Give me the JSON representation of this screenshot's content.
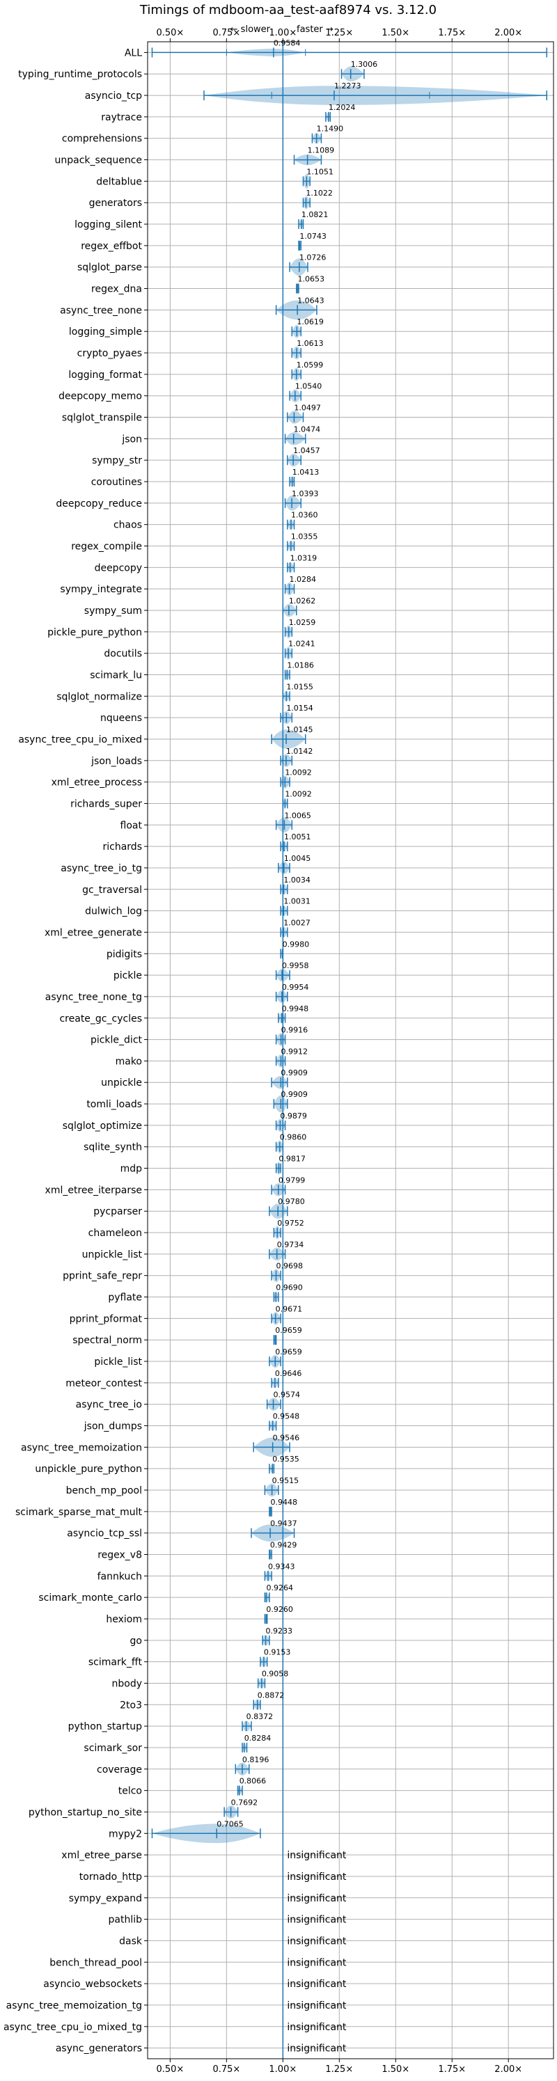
{
  "chart_data": {
    "type": "violin",
    "title": "Timings of mdboom-aa_test-aaf8974 vs. 3.12.0",
    "direction_labels": {
      "slower": "← slower",
      "faster": "faster →"
    },
    "x_ticks": [
      "0.50×",
      "0.75×",
      "1.00×",
      "1.25×",
      "1.50×",
      "1.75×",
      "2.00×"
    ],
    "x_tick_values": [
      0.5,
      0.75,
      1.0,
      1.25,
      1.5,
      1.75,
      2.0
    ],
    "xlim": [
      0.4,
      2.2
    ],
    "reference_line": 1.0,
    "grid": true,
    "insignificant_label": "insignificant",
    "benchmarks": [
      {
        "name": "ALL",
        "value": 0.9584,
        "label": "0.9584",
        "lo": 0.42,
        "hi": 2.17,
        "width": 0.18,
        "inner": [
          0.75,
          1.1
        ],
        "status": "all"
      },
      {
        "name": "typing_runtime_protocols",
        "value": 1.3006,
        "label": "1.3006",
        "lo": 1.26,
        "hi": 1.36,
        "width": 0.35,
        "status": "sig"
      },
      {
        "name": "asyncio_tcp",
        "value": 1.2273,
        "label": "1.2273",
        "lo": 0.65,
        "hi": 2.17,
        "width": 0.45,
        "inner": [
          0.95,
          1.65
        ],
        "status": "sig"
      },
      {
        "name": "raytrace",
        "value": 1.2024,
        "label": "1.2024",
        "lo": 1.19,
        "hi": 1.21,
        "width": 0.2,
        "status": "sig"
      },
      {
        "name": "comprehensions",
        "value": 1.149,
        "label": "1.1490",
        "lo": 1.13,
        "hi": 1.17,
        "width": 0.25,
        "status": "sig"
      },
      {
        "name": "unpack_sequence",
        "value": 1.1089,
        "label": "1.1089",
        "lo": 1.05,
        "hi": 1.17,
        "width": 0.25,
        "status": "sig"
      },
      {
        "name": "deltablue",
        "value": 1.1051,
        "label": "1.1051",
        "lo": 1.09,
        "hi": 1.12,
        "width": 0.35,
        "status": "sig"
      },
      {
        "name": "generators",
        "value": 1.1022,
        "label": "1.1022",
        "lo": 1.09,
        "hi": 1.12,
        "width": 0.3,
        "status": "sig"
      },
      {
        "name": "logging_silent",
        "value": 1.0821,
        "label": "1.0821",
        "lo": 1.07,
        "hi": 1.09,
        "width": 0.2,
        "status": "sig"
      },
      {
        "name": "regex_effbot",
        "value": 1.0743,
        "label": "1.0743",
        "lo": 1.07,
        "hi": 1.08,
        "width": 0.15,
        "status": "sig"
      },
      {
        "name": "sqlglot_parse",
        "value": 1.0726,
        "label": "1.0726",
        "lo": 1.03,
        "hi": 1.11,
        "width": 0.4,
        "status": "sig"
      },
      {
        "name": "regex_dna",
        "value": 1.0653,
        "label": "1.0653",
        "lo": 1.06,
        "hi": 1.07,
        "width": 0.2,
        "status": "sig"
      },
      {
        "name": "async_tree_none",
        "value": 1.0643,
        "label": "1.0643",
        "lo": 0.97,
        "hi": 1.15,
        "width": 0.45,
        "status": "sig"
      },
      {
        "name": "logging_simple",
        "value": 1.0619,
        "label": "1.0619",
        "lo": 1.04,
        "hi": 1.08,
        "width": 0.3,
        "status": "sig"
      },
      {
        "name": "crypto_pyaes",
        "value": 1.0613,
        "label": "1.0613",
        "lo": 1.04,
        "hi": 1.08,
        "width": 0.3,
        "status": "sig"
      },
      {
        "name": "logging_format",
        "value": 1.0599,
        "label": "1.0599",
        "lo": 1.04,
        "hi": 1.08,
        "width": 0.3,
        "status": "sig"
      },
      {
        "name": "deepcopy_memo",
        "value": 1.054,
        "label": "1.0540",
        "lo": 1.03,
        "hi": 1.08,
        "width": 0.3,
        "status": "sig"
      },
      {
        "name": "sqlglot_transpile",
        "value": 1.0497,
        "label": "1.0497",
        "lo": 1.02,
        "hi": 1.09,
        "width": 0.3,
        "status": "sig"
      },
      {
        "name": "json",
        "value": 1.0474,
        "label": "1.0474",
        "lo": 1.01,
        "hi": 1.1,
        "width": 0.3,
        "status": "sig"
      },
      {
        "name": "sympy_str",
        "value": 1.0457,
        "label": "1.0457",
        "lo": 1.02,
        "hi": 1.08,
        "width": 0.3,
        "status": "sig"
      },
      {
        "name": "coroutines",
        "value": 1.0413,
        "label": "1.0413",
        "lo": 1.03,
        "hi": 1.05,
        "width": 0.25,
        "status": "sig"
      },
      {
        "name": "deepcopy_reduce",
        "value": 1.0393,
        "label": "1.0393",
        "lo": 1.01,
        "hi": 1.08,
        "width": 0.35,
        "status": "sig"
      },
      {
        "name": "chaos",
        "value": 1.036,
        "label": "1.0360",
        "lo": 1.02,
        "hi": 1.05,
        "width": 0.25,
        "status": "sig"
      },
      {
        "name": "regex_compile",
        "value": 1.0355,
        "label": "1.0355",
        "lo": 1.02,
        "hi": 1.05,
        "width": 0.25,
        "status": "sig"
      },
      {
        "name": "deepcopy",
        "value": 1.0319,
        "label": "1.0319",
        "lo": 1.02,
        "hi": 1.05,
        "width": 0.25,
        "status": "sig"
      },
      {
        "name": "sympy_integrate",
        "value": 1.0284,
        "label": "1.0284",
        "lo": 1.01,
        "hi": 1.05,
        "width": 0.3,
        "status": "sig"
      },
      {
        "name": "sympy_sum",
        "value": 1.0262,
        "label": "1.0262",
        "lo": 1.0,
        "hi": 1.06,
        "width": 0.3,
        "status": "sig"
      },
      {
        "name": "pickle_pure_python",
        "value": 1.0259,
        "label": "1.0259",
        "lo": 1.01,
        "hi": 1.04,
        "width": 0.3,
        "status": "sig"
      },
      {
        "name": "docutils",
        "value": 1.0241,
        "label": "1.0241",
        "lo": 1.01,
        "hi": 1.04,
        "width": 0.3,
        "status": "sig"
      },
      {
        "name": "scimark_lu",
        "value": 1.0186,
        "label": "1.0186",
        "lo": 1.01,
        "hi": 1.03,
        "width": 0.25,
        "status": "sig"
      },
      {
        "name": "sqlglot_normalize",
        "value": 1.0155,
        "label": "1.0155",
        "lo": 1.0,
        "hi": 1.03,
        "width": 0.25,
        "status": "sig"
      },
      {
        "name": "nqueens",
        "value": 1.0154,
        "label": "1.0154",
        "lo": 0.99,
        "hi": 1.04,
        "width": 0.3,
        "status": "sig"
      },
      {
        "name": "async_tree_cpu_io_mixed",
        "value": 1.0145,
        "label": "1.0145",
        "lo": 0.95,
        "hi": 1.1,
        "width": 0.45,
        "status": "sig"
      },
      {
        "name": "json_loads",
        "value": 1.0142,
        "label": "1.0142",
        "lo": 0.99,
        "hi": 1.04,
        "width": 0.3,
        "status": "sig"
      },
      {
        "name": "xml_etree_process",
        "value": 1.0092,
        "label": "1.0092",
        "lo": 0.99,
        "hi": 1.03,
        "width": 0.3,
        "status": "sig"
      },
      {
        "name": "richards_super",
        "value": 1.0092,
        "label": "1.0092",
        "lo": 1.0,
        "hi": 1.02,
        "width": 0.2,
        "status": "sig"
      },
      {
        "name": "float",
        "value": 1.0065,
        "label": "1.0065",
        "lo": 0.97,
        "hi": 1.04,
        "width": 0.35,
        "status": "sig"
      },
      {
        "name": "richards",
        "value": 1.0051,
        "label": "1.0051",
        "lo": 0.99,
        "hi": 1.02,
        "width": 0.25,
        "status": "sig"
      },
      {
        "name": "async_tree_io_tg",
        "value": 1.0045,
        "label": "1.0045",
        "lo": 0.98,
        "hi": 1.03,
        "width": 0.3,
        "status": "sig"
      },
      {
        "name": "gc_traversal",
        "value": 1.0034,
        "label": "1.0034",
        "lo": 0.99,
        "hi": 1.02,
        "width": 0.25,
        "status": "sig"
      },
      {
        "name": "dulwich_log",
        "value": 1.0031,
        "label": "1.0031",
        "lo": 0.99,
        "hi": 1.02,
        "width": 0.25,
        "status": "sig"
      },
      {
        "name": "xml_etree_generate",
        "value": 1.0027,
        "label": "1.0027",
        "lo": 0.99,
        "hi": 1.02,
        "width": 0.25,
        "status": "sig"
      },
      {
        "name": "pidigits",
        "value": 0.998,
        "label": "0.9980",
        "lo": 0.99,
        "hi": 1.0,
        "width": 0.2,
        "status": "sig"
      },
      {
        "name": "pickle",
        "value": 0.9958,
        "label": "0.9958",
        "lo": 0.97,
        "hi": 1.03,
        "width": 0.3,
        "status": "sig"
      },
      {
        "name": "async_tree_none_tg",
        "value": 0.9954,
        "label": "0.9954",
        "lo": 0.97,
        "hi": 1.02,
        "width": 0.3,
        "status": "sig"
      },
      {
        "name": "create_gc_cycles",
        "value": 0.9948,
        "label": "0.9948",
        "lo": 0.98,
        "hi": 1.01,
        "width": 0.25,
        "status": "sig"
      },
      {
        "name": "pickle_dict",
        "value": 0.9916,
        "label": "0.9916",
        "lo": 0.97,
        "hi": 1.01,
        "width": 0.3,
        "status": "sig"
      },
      {
        "name": "mako",
        "value": 0.9912,
        "label": "0.9912",
        "lo": 0.97,
        "hi": 1.01,
        "width": 0.3,
        "status": "sig"
      },
      {
        "name": "unpickle",
        "value": 0.9909,
        "label": "0.9909",
        "lo": 0.95,
        "hi": 1.02,
        "width": 0.3,
        "status": "sig"
      },
      {
        "name": "tomli_loads",
        "value": 0.9909,
        "label": "0.9909",
        "lo": 0.96,
        "hi": 1.02,
        "width": 0.4,
        "status": "sig"
      },
      {
        "name": "sqlglot_optimize",
        "value": 0.9879,
        "label": "0.9879",
        "lo": 0.97,
        "hi": 1.01,
        "width": 0.3,
        "status": "sig"
      },
      {
        "name": "sqlite_synth",
        "value": 0.986,
        "label": "0.9860",
        "lo": 0.97,
        "hi": 1.0,
        "width": 0.3,
        "status": "sig"
      },
      {
        "name": "mdp",
        "value": 0.9817,
        "label": "0.9817",
        "lo": 0.97,
        "hi": 0.99,
        "width": 0.3,
        "status": "sig"
      },
      {
        "name": "xml_etree_iterparse",
        "value": 0.9799,
        "label": "0.9799",
        "lo": 0.95,
        "hi": 1.01,
        "width": 0.3,
        "status": "sig"
      },
      {
        "name": "pycparser",
        "value": 0.978,
        "label": "0.9780",
        "lo": 0.94,
        "hi": 1.02,
        "width": 0.35,
        "status": "sig"
      },
      {
        "name": "chameleon",
        "value": 0.9752,
        "label": "0.9752",
        "lo": 0.96,
        "hi": 0.99,
        "width": 0.3,
        "status": "sig"
      },
      {
        "name": "unpickle_list",
        "value": 0.9734,
        "label": "0.9734",
        "lo": 0.94,
        "hi": 1.01,
        "width": 0.3,
        "status": "sig"
      },
      {
        "name": "pprint_safe_repr",
        "value": 0.9698,
        "label": "0.9698",
        "lo": 0.95,
        "hi": 0.99,
        "width": 0.3,
        "status": "sig"
      },
      {
        "name": "pyflate",
        "value": 0.969,
        "label": "0.9690",
        "lo": 0.96,
        "hi": 0.98,
        "width": 0.25,
        "status": "sig"
      },
      {
        "name": "pprint_pformat",
        "value": 0.9671,
        "label": "0.9671",
        "lo": 0.95,
        "hi": 0.99,
        "width": 0.3,
        "status": "sig"
      },
      {
        "name": "spectral_norm",
        "value": 0.9659,
        "label": "0.9659",
        "lo": 0.96,
        "hi": 0.97,
        "width": 0.2,
        "status": "sig"
      },
      {
        "name": "pickle_list",
        "value": 0.9659,
        "label": "0.9659",
        "lo": 0.94,
        "hi": 0.99,
        "width": 0.3,
        "status": "sig"
      },
      {
        "name": "meteor_contest",
        "value": 0.9646,
        "label": "0.9646",
        "lo": 0.95,
        "hi": 0.98,
        "width": 0.25,
        "status": "sig"
      },
      {
        "name": "async_tree_io",
        "value": 0.9574,
        "label": "0.9574",
        "lo": 0.93,
        "hi": 0.99,
        "width": 0.3,
        "status": "sig"
      },
      {
        "name": "json_dumps",
        "value": 0.9548,
        "label": "0.9548",
        "lo": 0.94,
        "hi": 0.97,
        "width": 0.25,
        "status": "sig"
      },
      {
        "name": "async_tree_memoization",
        "value": 0.9546,
        "label": "0.9546",
        "lo": 0.87,
        "hi": 1.03,
        "width": 0.45,
        "status": "sig"
      },
      {
        "name": "unpickle_pure_python",
        "value": 0.9535,
        "label": "0.9535",
        "lo": 0.94,
        "hi": 0.96,
        "width": 0.2,
        "status": "sig"
      },
      {
        "name": "bench_mp_pool",
        "value": 0.9515,
        "label": "0.9515",
        "lo": 0.92,
        "hi": 0.98,
        "width": 0.3,
        "status": "sig"
      },
      {
        "name": "scimark_sparse_mat_mult",
        "value": 0.9448,
        "label": "0.9448",
        "lo": 0.94,
        "hi": 0.95,
        "width": 0.2,
        "status": "sig"
      },
      {
        "name": "asyncio_tcp_ssl",
        "value": 0.9437,
        "label": "0.9437",
        "lo": 0.86,
        "hi": 1.05,
        "width": 0.4,
        "status": "sig"
      },
      {
        "name": "regex_v8",
        "value": 0.9429,
        "label": "0.9429",
        "lo": 0.94,
        "hi": 0.95,
        "width": 0.2,
        "status": "sig"
      },
      {
        "name": "fannkuch",
        "value": 0.9343,
        "label": "0.9343",
        "lo": 0.92,
        "hi": 0.95,
        "width": 0.25,
        "status": "sig"
      },
      {
        "name": "scimark_monte_carlo",
        "value": 0.9264,
        "label": "0.9264",
        "lo": 0.92,
        "hi": 0.94,
        "width": 0.25,
        "status": "sig"
      },
      {
        "name": "hexiom",
        "value": 0.926,
        "label": "0.9260",
        "lo": 0.92,
        "hi": 0.93,
        "width": 0.2,
        "status": "sig"
      },
      {
        "name": "go",
        "value": 0.9233,
        "label": "0.9233",
        "lo": 0.91,
        "hi": 0.94,
        "width": 0.25,
        "status": "sig"
      },
      {
        "name": "scimark_fft",
        "value": 0.9153,
        "label": "0.9153",
        "lo": 0.9,
        "hi": 0.93,
        "width": 0.25,
        "status": "sig"
      },
      {
        "name": "nbody",
        "value": 0.9058,
        "label": "0.9058",
        "lo": 0.89,
        "hi": 0.92,
        "width": 0.25,
        "status": "sig"
      },
      {
        "name": "2to3",
        "value": 0.8872,
        "label": "0.8872",
        "lo": 0.87,
        "hi": 0.9,
        "width": 0.25,
        "status": "sig"
      },
      {
        "name": "python_startup",
        "value": 0.8372,
        "label": "0.8372",
        "lo": 0.82,
        "hi": 0.86,
        "width": 0.25,
        "status": "sig"
      },
      {
        "name": "scimark_sor",
        "value": 0.8284,
        "label": "0.8284",
        "lo": 0.82,
        "hi": 0.84,
        "width": 0.2,
        "status": "sig"
      },
      {
        "name": "coverage",
        "value": 0.8196,
        "label": "0.8196",
        "lo": 0.79,
        "hi": 0.85,
        "width": 0.3,
        "status": "sig"
      },
      {
        "name": "telco",
        "value": 0.8066,
        "label": "0.8066",
        "lo": 0.8,
        "hi": 0.82,
        "width": 0.2,
        "status": "sig"
      },
      {
        "name": "python_startup_no_site",
        "value": 0.7692,
        "label": "0.7692",
        "lo": 0.74,
        "hi": 0.8,
        "width": 0.3,
        "status": "sig"
      },
      {
        "name": "mypy2",
        "value": 0.7065,
        "label": "0.7065",
        "lo": 0.42,
        "hi": 0.9,
        "width": 0.45,
        "status": "sig"
      },
      {
        "name": "xml_etree_parse",
        "status": "insignificant"
      },
      {
        "name": "tornado_http",
        "status": "insignificant"
      },
      {
        "name": "sympy_expand",
        "status": "insignificant"
      },
      {
        "name": "pathlib",
        "status": "insignificant"
      },
      {
        "name": "dask",
        "status": "insignificant"
      },
      {
        "name": "bench_thread_pool",
        "status": "insignificant"
      },
      {
        "name": "asyncio_websockets",
        "status": "insignificant"
      },
      {
        "name": "async_tree_memoization_tg",
        "status": "insignificant"
      },
      {
        "name": "async_tree_cpu_io_mixed_tg",
        "status": "insignificant"
      },
      {
        "name": "async_generators",
        "status": "insignificant"
      }
    ],
    "colors": {
      "violin": "#1f77b4",
      "violin_fill": "#1f77b4",
      "grid": "#b0b0b0",
      "highlight": "#d62728"
    }
  }
}
